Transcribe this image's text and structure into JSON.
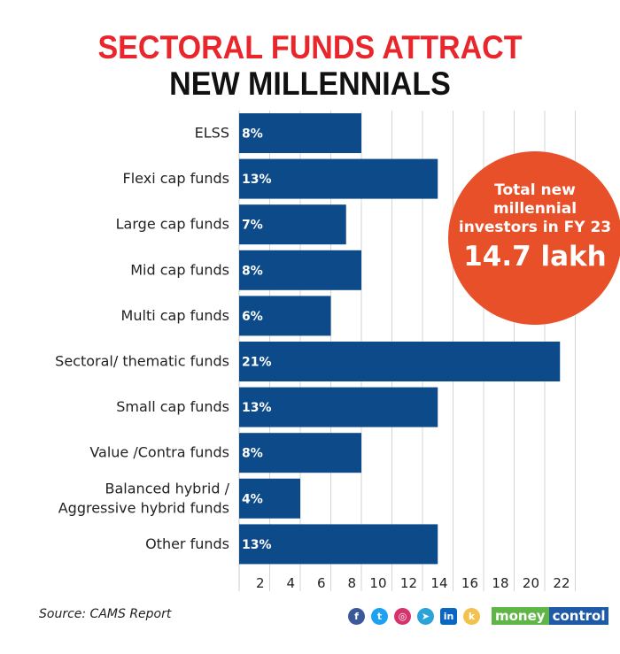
{
  "title_line1": "SECTORAL FUNDS ATTRACT",
  "title_line2": "NEW MILLENNIALS",
  "callout": {
    "label_lines": [
      "Total new",
      "millennial",
      "investors in FY 23"
    ],
    "value": "14.7 lakh"
  },
  "source": "Source: CAMS Report",
  "brand": {
    "part1": "money",
    "part2": "control"
  },
  "social_icons": [
    "facebook-icon",
    "twitter-icon",
    "instagram-icon",
    "telegram-icon",
    "linkedin-icon",
    "koo-icon"
  ],
  "colors": {
    "bar": "#0d4a8a",
    "title_accent": "#e8262b",
    "callout": "#e8502a"
  },
  "chart_data": {
    "type": "bar",
    "orientation": "horizontal",
    "categories": [
      "ELSS",
      "Flexi cap funds",
      "Large cap funds",
      "Mid cap funds",
      "Multi cap funds",
      "Sectoral/ thematic funds",
      "Small cap funds",
      "Value /Contra funds",
      "Balanced hybrid / Aggressive hybrid funds",
      "Other funds"
    ],
    "values": [
      8,
      13,
      7,
      8,
      6,
      21,
      13,
      8,
      4,
      13
    ],
    "data_labels": [
      "8%",
      "13%",
      "7%",
      "8%",
      "6%",
      "21%",
      "13%",
      "8%",
      "4%",
      "13%"
    ],
    "xticks": [
      2,
      4,
      6,
      8,
      10,
      12,
      14,
      16,
      18,
      20,
      22
    ],
    "xlim": [
      0,
      22
    ],
    "grid": true
  }
}
